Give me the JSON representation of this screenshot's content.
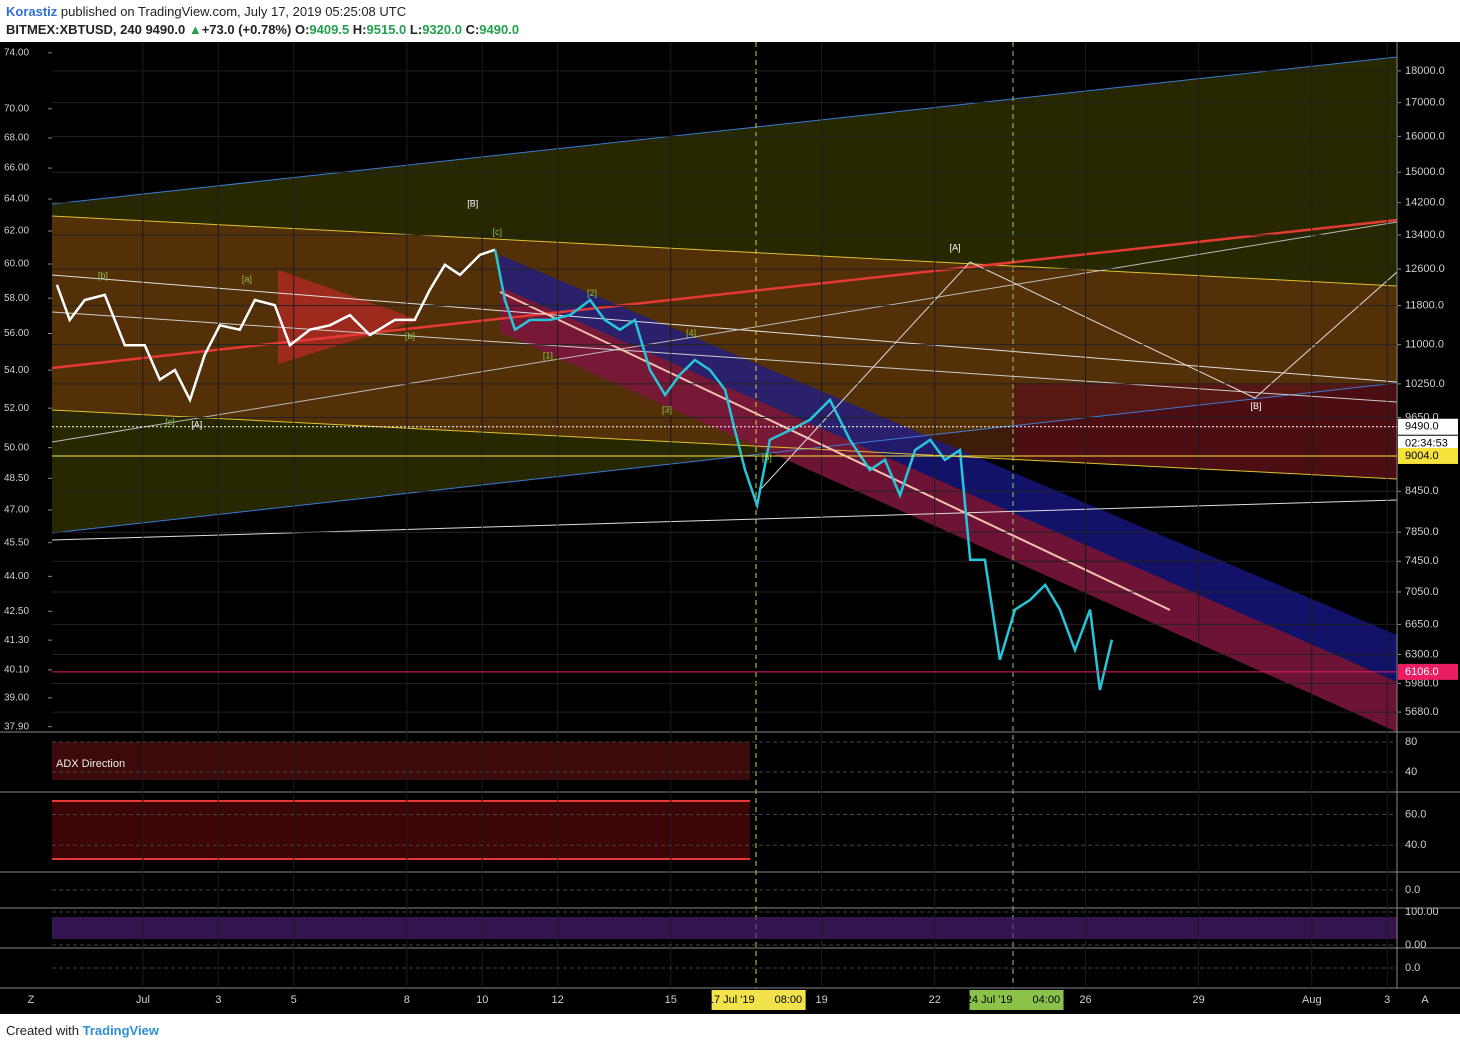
{
  "header": {
    "author": "Korastiz",
    "published": "published on TradingView.com, July 17, 2019 05:25:08 UTC",
    "symbol": "BITMEX:XBTUSD, 240",
    "last": "9490.0",
    "change": "+73.0 (+0.78%)",
    "open_label": "O:",
    "open": "9409.5",
    "high_label": "H:",
    "high": "9515.0",
    "low_label": "L:",
    "low": "9320.0",
    "close_label": "C:",
    "close": "9490.0"
  },
  "chart_data": {
    "type": "line",
    "log_scale": true,
    "xlim": [
      -1.41,
      34.26
    ],
    "xticks": [
      {
        "value": 1,
        "label": "Jul"
      },
      3,
      5,
      8,
      10,
      12,
      15,
      19,
      22,
      26,
      29,
      {
        "value": 32,
        "label": "Aug"
      },
      {
        "value": 34,
        "label": "3"
      }
    ],
    "ylim": [
      5480,
      18960
    ],
    "yticks": [
      {
        "value": 18000,
        "label": "18000.0"
      },
      {
        "value": 17000,
        "label": "17000.0"
      },
      {
        "value": 16000,
        "label": "16000.0"
      },
      {
        "value": 15000,
        "label": "15000.0"
      },
      {
        "value": 14200,
        "label": "14200.0"
      },
      {
        "value": 13400,
        "label": "13400.0"
      },
      {
        "value": 12600,
        "label": "12600.0"
      },
      {
        "value": 11800,
        "label": "11800.0"
      },
      {
        "value": 11000,
        "label": "11000.0"
      },
      {
        "value": 10250,
        "label": "10250.0"
      },
      {
        "value": 9650,
        "label": "9650.0"
      },
      {
        "value": 8450,
        "label": "8450.0"
      },
      {
        "value": 7850,
        "label": "7850.0"
      },
      {
        "value": 7450,
        "label": "7450.0"
      },
      {
        "value": 7050,
        "label": "7050.0"
      },
      {
        "value": 6650,
        "label": "6650.0"
      },
      {
        "value": 6300,
        "label": "6300.0"
      },
      {
        "value": 5980,
        "label": "5980.0"
      },
      {
        "value": 5680,
        "label": "5680.0"
      }
    ],
    "y2lim": [
      37.7,
      74.8
    ],
    "y2ticks": [
      {
        "value": 74,
        "label": "74.00"
      },
      {
        "value": 70,
        "label": "70.00"
      },
      {
        "value": 68,
        "label": "68.00"
      },
      {
        "value": 66,
        "label": "66.00"
      },
      {
        "value": 64,
        "label": "64.00"
      },
      {
        "value": 62,
        "label": "62.00"
      },
      {
        "value": 60,
        "label": "60.00"
      },
      {
        "value": 58,
        "label": "58.00"
      },
      {
        "value": 56,
        "label": "56.00"
      },
      {
        "value": 54,
        "label": "54.00"
      },
      {
        "value": 52,
        "label": "52.00"
      },
      {
        "value": 50,
        "label": "50.00"
      },
      {
        "value": 48.5,
        "label": "48.50"
      },
      {
        "value": 47,
        "label": "47.00"
      },
      {
        "value": 45.5,
        "label": "45.50"
      },
      {
        "value": 44,
        "label": "44.00"
      },
      {
        "value": 42.5,
        "label": "42.50"
      },
      {
        "value": 41.3,
        "label": "41.30"
      },
      {
        "value": 40.1,
        "label": "40.10"
      },
      {
        "value": 39,
        "label": "39.00"
      },
      {
        "value": 37.9,
        "label": "37.90"
      }
    ],
    "series": [
      {
        "color": "#ffffff",
        "x": [
          -1.28,
          -0.94,
          -0.54,
          -0.01,
          0.52,
          1.05,
          1.45,
          1.85,
          2.25,
          2.64,
          3.04,
          3.57,
          3.97,
          4.5,
          4.9,
          5.43,
          5.96,
          6.49,
          7.02,
          7.68,
          8.21,
          8.61,
          9.01,
          9.41,
          9.94,
          10.34
        ],
        "values": [
          12250,
          11500,
          11920,
          12030,
          10990,
          10990,
          10330,
          10510,
          9960,
          10800,
          11390,
          11300,
          11920,
          11810,
          10990,
          11300,
          11390,
          11600,
          11190,
          11500,
          11500,
          12140,
          12700,
          12470,
          12930,
          13050
        ]
      },
      {
        "color": "#26c6da",
        "x": [
          10.34,
          10.6,
          10.87,
          11.27,
          11.8,
          12.33,
          12.86,
          13.25,
          13.65,
          14.05,
          14.45,
          14.85,
          15.24,
          15.64,
          16.04,
          16.44,
          16.7,
          16.97,
          17.29,
          17.63,
          18.16,
          18.69,
          19.22,
          19.75,
          20.28,
          20.68,
          21.08,
          21.48,
          21.88,
          22.27,
          22.67,
          22.94,
          23.33,
          23.73,
          24.13,
          24.53,
          24.93,
          25.32,
          25.72,
          26.12,
          26.38,
          26.7
        ],
        "values": [
          13050,
          11920,
          11300,
          11500,
          11500,
          11600,
          11920,
          11500,
          11300,
          11500,
          10510,
          10050,
          10420,
          10700,
          10510,
          10140,
          9430,
          8780,
          8240,
          9270,
          9430,
          9610,
          9960,
          9270,
          8780,
          8940,
          8390,
          9100,
          9270,
          8940,
          9100,
          7470,
          7470,
          6240,
          6830,
          6950,
          7140,
          6830,
          6350,
          6830,
          5910,
          6470
        ]
      }
    ],
    "price_markers": [
      {
        "value": 9490,
        "label": "9490.0",
        "color": "#ffffff",
        "text_color": "#000000"
      },
      {
        "value": 9004,
        "label": "9004.0",
        "color": "#f5e33c",
        "text_color": "#000000"
      },
      {
        "value": 6106,
        "label": "6106.0",
        "color": "#e91e63",
        "text_color": "#ffffff"
      }
    ],
    "countdown": "02:34:53",
    "time_markers": [
      {
        "value": 17.33,
        "date": "17 Jul '19",
        "time": "08:00",
        "color": "#f2e34c"
      },
      {
        "value": 24.17,
        "date": "24 Jul '19",
        "time": "04:00",
        "color": "#8bc34a"
      }
    ],
    "annotations": [
      {
        "text": "[B]",
        "x": 9.75,
        "y": 14170,
        "color": "#ffffff"
      },
      {
        "text": "[c]",
        "x": 10.4,
        "y": 13450,
        "color": "#8bc34a"
      },
      {
        "text": "[b]",
        "x": -0.06,
        "y": 12440,
        "color": "#8bc34a"
      },
      {
        "text": "[a]",
        "x": 3.76,
        "y": 12360,
        "color": "#8bc34a"
      },
      {
        "text": "[b]",
        "x": 8.08,
        "y": 11160,
        "color": "#8bc34a"
      },
      {
        "text": "[1]",
        "x": 11.74,
        "y": 10780,
        "color": "#8bc34a"
      },
      {
        "text": "[2]",
        "x": 12.91,
        "y": 12060,
        "color": "#8bc34a"
      },
      {
        "text": "[3]",
        "x": 14.9,
        "y": 9780,
        "color": "#8bc34a"
      },
      {
        "text": "[4]",
        "x": 15.54,
        "y": 11220,
        "color": "#8bc34a"
      },
      {
        "text": "[5]",
        "x": 17.55,
        "y": 8970,
        "color": "#8bc34a"
      },
      {
        "text": "[c]",
        "x": 1.72,
        "y": 9560,
        "color": "#8bc34a"
      },
      {
        "text": "[A]",
        "x": 2.43,
        "y": 9520,
        "color": "#ffffff"
      },
      {
        "text": "[A]",
        "x": 22.54,
        "y": 13090,
        "color": "#ffffff"
      },
      {
        "text": "[B]",
        "x": 30.52,
        "y": 9840,
        "color": "#ffffff"
      }
    ]
  },
  "panes": [
    {
      "name": "ADX Direction",
      "ylim": [
        14.7,
        92
      ],
      "yticks": [
        80,
        40
      ]
    },
    {
      "ylim": [
        23.3,
        74
      ],
      "yticks": [
        {
          "value": 60,
          "label": "60.0"
        },
        {
          "value": 40,
          "label": "40.0"
        }
      ]
    },
    {
      "ylim": [
        -12,
        12
      ],
      "yticks": [
        {
          "value": 0,
          "label": "0.0"
        }
      ]
    },
    {
      "ylim": [
        -6,
        109
      ],
      "yticks": [
        {
          "value": 100,
          "label": "100.00"
        },
        {
          "value": 0,
          "label": "0.00"
        }
      ]
    },
    {
      "ylim": [
        -1,
        1
      ],
      "yticks": [
        {
          "value": 0,
          "label": "0.0"
        }
      ]
    }
  ],
  "footer": {
    "created": "Created with",
    "brand": "TradingView"
  }
}
